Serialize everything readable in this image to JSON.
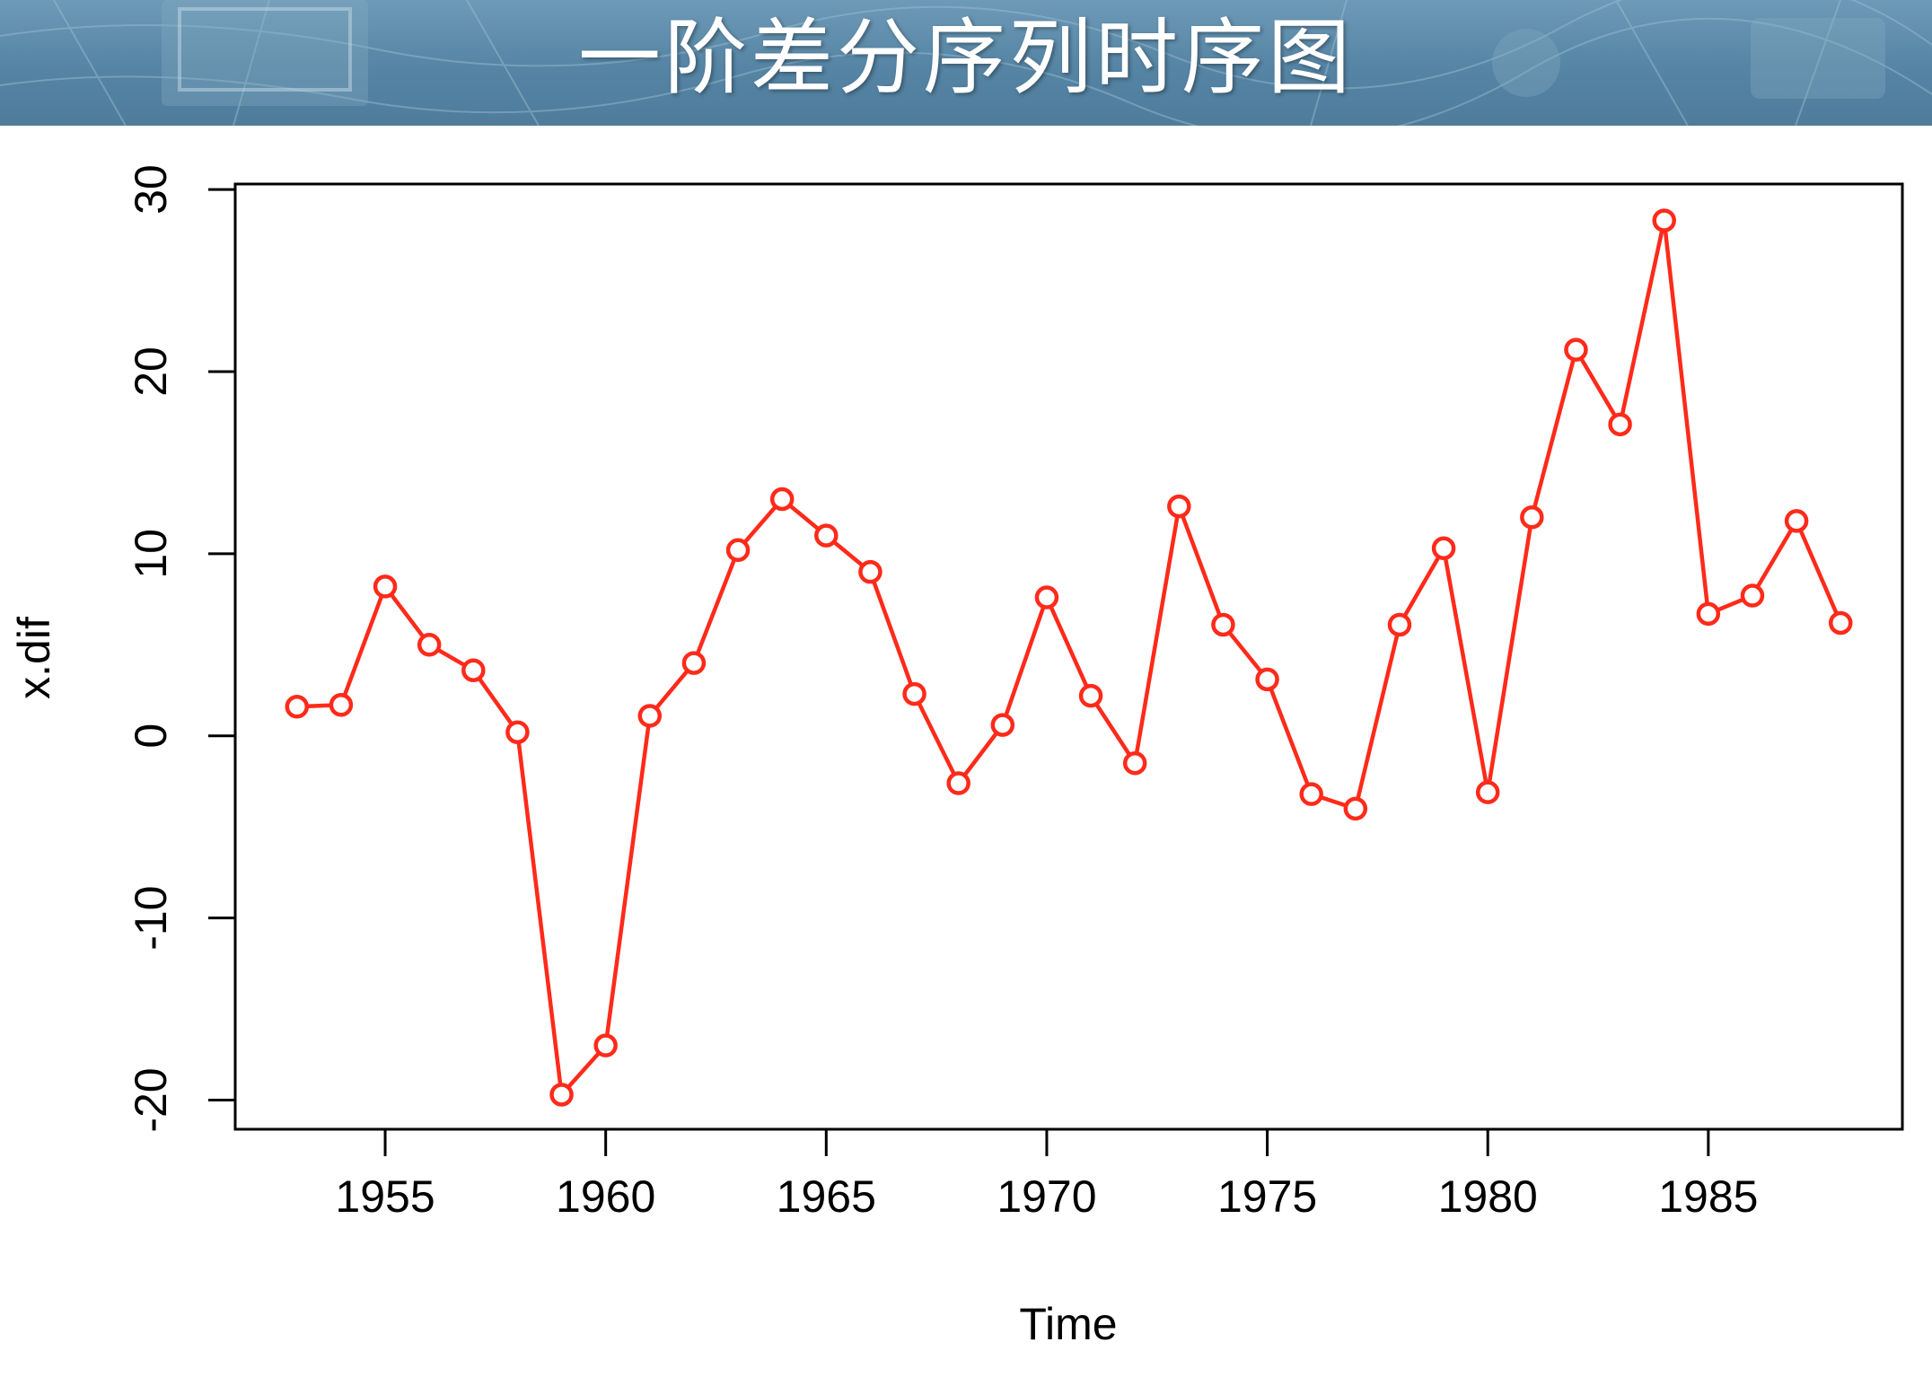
{
  "slide": {
    "title": "一阶差分序列时序图"
  },
  "colors": {
    "banner": "#5a89a8",
    "series": "#ff2a1a",
    "axis": "#000000"
  },
  "chart_data": {
    "type": "line",
    "xlabel": "Time",
    "ylabel": "x.dif",
    "xlim": [
      1951.6,
      1989.4
    ],
    "ylim": [
      -21.6,
      30.3
    ],
    "x_ticks": [
      1955,
      1960,
      1965,
      1970,
      1975,
      1980,
      1985
    ],
    "y_ticks": [
      -20,
      -10,
      0,
      10,
      20,
      30
    ],
    "grid": false,
    "legend": "none",
    "markers": "open-circle",
    "series": [
      {
        "x": [
          1953,
          1954,
          1955,
          1956,
          1957,
          1958,
          1959,
          1960,
          1961,
          1962,
          1963,
          1964,
          1965,
          1966,
          1967,
          1968,
          1969,
          1970,
          1971,
          1972,
          1973,
          1974,
          1975,
          1976,
          1977,
          1978,
          1979,
          1980,
          1981,
          1982,
          1983,
          1984,
          1985,
          1986,
          1987,
          1988
        ],
        "values": [
          1.6,
          1.7,
          8.2,
          5.0,
          3.6,
          0.2,
          -19.7,
          -17.0,
          1.1,
          4.0,
          10.2,
          13.0,
          11.0,
          9.0,
          2.3,
          -2.6,
          0.6,
          7.6,
          2.2,
          -1.5,
          12.6,
          6.1,
          3.1,
          -3.2,
          -4.0,
          6.1,
          10.3,
          -3.1,
          12.0,
          21.2,
          17.1,
          28.3,
          6.7,
          7.7,
          11.8,
          6.2
        ]
      }
    ]
  }
}
